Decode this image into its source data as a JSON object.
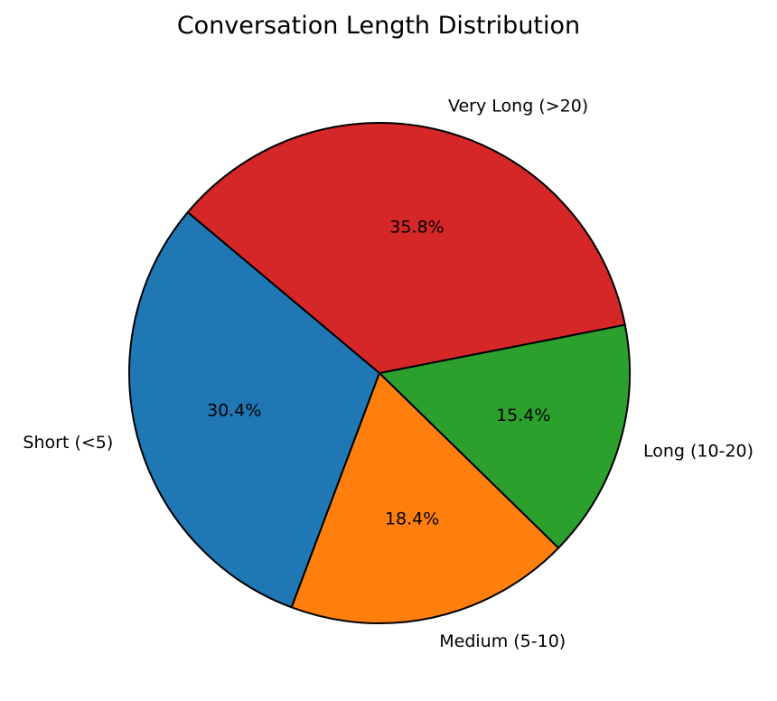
{
  "chart_data": {
    "type": "pie",
    "title": "Conversation Length Distribution",
    "slices": [
      {
        "label": "Short (<5)",
        "value": 30.4,
        "pct_label": "30.4%",
        "color": "#1f77b4"
      },
      {
        "label": "Medium (5-10)",
        "value": 18.4,
        "pct_label": "18.4%",
        "color": "#ff7f0e"
      },
      {
        "label": "Long (10-20)",
        "value": 15.4,
        "pct_label": "15.4%",
        "color": "#2ca02c"
      },
      {
        "label": "Very Long (>20)",
        "value": 35.8,
        "pct_label": "35.8%",
        "color": "#d62728"
      }
    ],
    "start_angle_deg": 140,
    "direction": "counterclockwise",
    "edge_color": "#000000"
  }
}
